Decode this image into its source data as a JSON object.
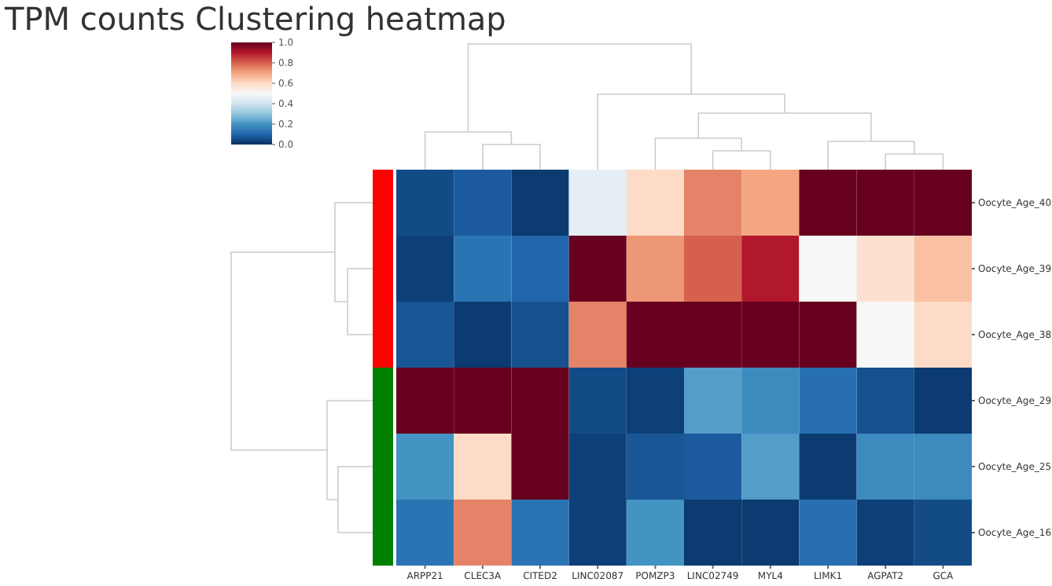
{
  "chart_data": {
    "type": "heatmap",
    "title": "TPM counts Clustering heatmap",
    "categories": [
      "ARPP21",
      "CLEC3A",
      "CITED2",
      "LINC02087",
      "POMZP3",
      "LINC02749",
      "MYL4",
      "LIMK1",
      "AGPAT2",
      "GCA"
    ],
    "y_categories": [
      "Oocyte_Age_40",
      "Oocyte_Age_39",
      "Oocyte_Age_38",
      "Oocyte_Age_29",
      "Oocyte_Age_25",
      "Oocyte_Age_16"
    ],
    "cells": [
      [
        0.05,
        0.08,
        0.02,
        0.45,
        0.6,
        0.75,
        0.7,
        1,
        1,
        1
      ],
      [
        0.03,
        0.13,
        0.1,
        1,
        0.72,
        0.8,
        0.9,
        0.5,
        0.58,
        0.65
      ],
      [
        0.07,
        0.02,
        0.06,
        0.75,
        1,
        1,
        1,
        1,
        0.5,
        0.6
      ],
      [
        1,
        1,
        1,
        0.05,
        0.03,
        0.22,
        0.18,
        0.12,
        0.06,
        0.02
      ],
      [
        0.2,
        0.6,
        1,
        0.03,
        0.07,
        0.08,
        0.22,
        0.02,
        0.18,
        0.18
      ],
      [
        0.13,
        0.75,
        0.13,
        0.03,
        0.2,
        0.02,
        0.02,
        0.12,
        0.03,
        0.05
      ]
    ],
    "clim": [
      0,
      1
    ],
    "cticks": [
      {
        "value": 0,
        "label": "0.0"
      },
      {
        "value": 0.2,
        "label": "0.2"
      },
      {
        "value": 0.4,
        "label": "0.4"
      },
      {
        "value": 0.6,
        "label": "0.6"
      },
      {
        "value": 0.8,
        "label": "0.8"
      },
      {
        "value": 1,
        "label": "1.0"
      }
    ]
  }
}
